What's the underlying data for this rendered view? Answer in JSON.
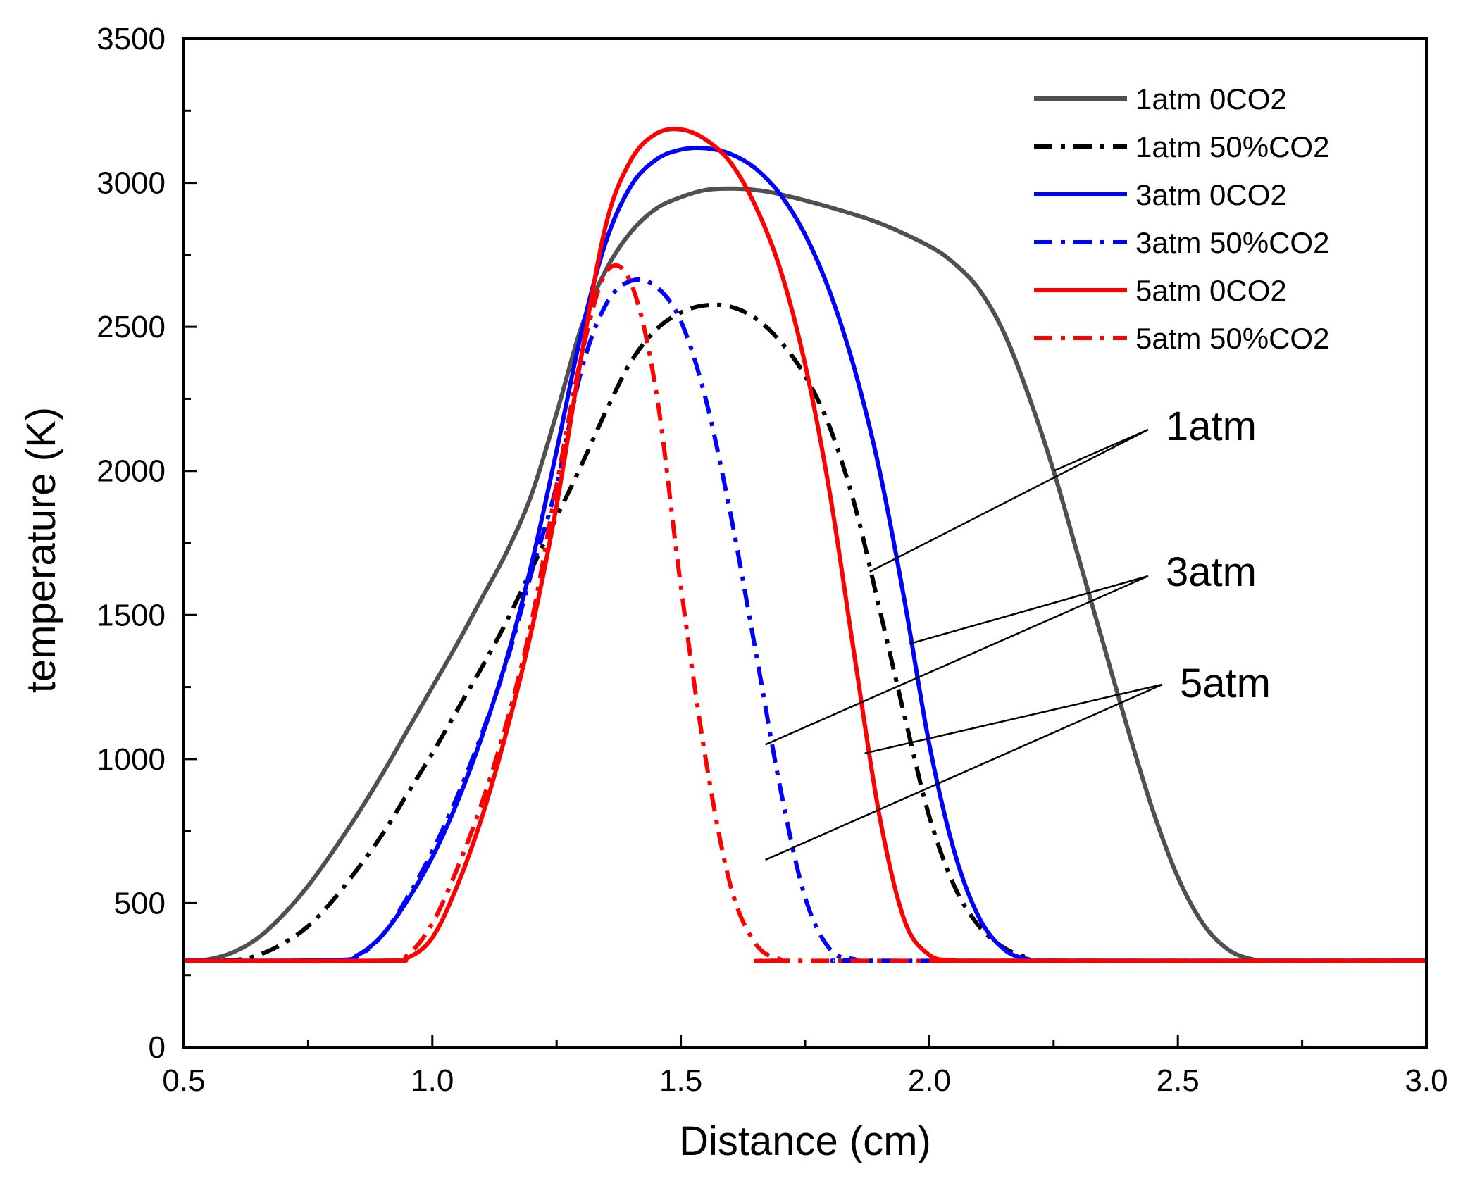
{
  "chart_data": {
    "type": "line",
    "title": "",
    "xlabel": "Distance (cm)",
    "ylabel": "temperature (K)",
    "xlim": [
      0.5,
      3.0
    ],
    "ylim": [
      0,
      3500
    ],
    "xticks": [
      0.5,
      1.0,
      1.5,
      2.0,
      2.5,
      3.0
    ],
    "xtick_labels": [
      "0.5",
      "1.0",
      "1.5",
      "2.0",
      "2.5",
      "3.0"
    ],
    "yticks": [
      0,
      500,
      1000,
      1500,
      2000,
      2500,
      3000,
      3500
    ],
    "ytick_labels": [
      "0",
      "500",
      "1000",
      "1500",
      "2000",
      "2500",
      "3000",
      "3500"
    ],
    "grid": false,
    "legend_position": "top-right",
    "series": [
      {
        "name": "1atm 0CO2",
        "color": "#505050",
        "dash": "solid",
        "points": [
          [
            0.5,
            300
          ],
          [
            0.55,
            305
          ],
          [
            0.6,
            330
          ],
          [
            0.65,
            380
          ],
          [
            0.7,
            460
          ],
          [
            0.75,
            560
          ],
          [
            0.8,
            680
          ],
          [
            0.85,
            810
          ],
          [
            0.9,
            950
          ],
          [
            0.95,
            1100
          ],
          [
            1.0,
            1250
          ],
          [
            1.05,
            1400
          ],
          [
            1.1,
            1560
          ],
          [
            1.15,
            1720
          ],
          [
            1.2,
            1920
          ],
          [
            1.25,
            2200
          ],
          [
            1.3,
            2500
          ],
          [
            1.35,
            2700
          ],
          [
            1.4,
            2830
          ],
          [
            1.45,
            2910
          ],
          [
            1.5,
            2950
          ],
          [
            1.55,
            2975
          ],
          [
            1.6,
            2980
          ],
          [
            1.65,
            2975
          ],
          [
            1.7,
            2960
          ],
          [
            1.8,
            2915
          ],
          [
            1.9,
            2860
          ],
          [
            2.0,
            2780
          ],
          [
            2.05,
            2720
          ],
          [
            2.1,
            2630
          ],
          [
            2.15,
            2480
          ],
          [
            2.2,
            2260
          ],
          [
            2.25,
            2000
          ],
          [
            2.3,
            1700
          ],
          [
            2.35,
            1400
          ],
          [
            2.4,
            1100
          ],
          [
            2.45,
            820
          ],
          [
            2.5,
            590
          ],
          [
            2.55,
            430
          ],
          [
            2.6,
            340
          ],
          [
            2.65,
            305
          ],
          [
            2.7,
            300
          ],
          [
            3.0,
            300
          ]
        ]
      },
      {
        "name": "1atm 50%CO2",
        "color": "#000000",
        "dash": "dashdot",
        "points": [
          [
            0.5,
            300
          ],
          [
            0.6,
            302
          ],
          [
            0.65,
            320
          ],
          [
            0.7,
            360
          ],
          [
            0.75,
            420
          ],
          [
            0.8,
            510
          ],
          [
            0.85,
            620
          ],
          [
            0.9,
            740
          ],
          [
            0.95,
            880
          ],
          [
            1.0,
            1020
          ],
          [
            1.05,
            1170
          ],
          [
            1.1,
            1320
          ],
          [
            1.15,
            1480
          ],
          [
            1.2,
            1660
          ],
          [
            1.25,
            1840
          ],
          [
            1.3,
            2020
          ],
          [
            1.35,
            2210
          ],
          [
            1.4,
            2380
          ],
          [
            1.45,
            2490
          ],
          [
            1.5,
            2550
          ],
          [
            1.55,
            2575
          ],
          [
            1.6,
            2570
          ],
          [
            1.65,
            2530
          ],
          [
            1.7,
            2450
          ],
          [
            1.75,
            2330
          ],
          [
            1.8,
            2150
          ],
          [
            1.85,
            1880
          ],
          [
            1.9,
            1520
          ],
          [
            1.95,
            1150
          ],
          [
            2.0,
            800
          ],
          [
            2.05,
            560
          ],
          [
            2.1,
            420
          ],
          [
            2.15,
            345
          ],
          [
            2.2,
            310
          ],
          [
            2.25,
            300
          ],
          [
            3.0,
            300
          ]
        ]
      },
      {
        "name": "3atm 0CO2",
        "color": "#0000ff",
        "dash": "solid",
        "points": [
          [
            0.5,
            300
          ],
          [
            0.8,
            302
          ],
          [
            0.85,
            320
          ],
          [
            0.9,
            390
          ],
          [
            0.95,
            510
          ],
          [
            1.0,
            660
          ],
          [
            1.05,
            850
          ],
          [
            1.1,
            1080
          ],
          [
            1.15,
            1350
          ],
          [
            1.2,
            1680
          ],
          [
            1.25,
            2070
          ],
          [
            1.3,
            2480
          ],
          [
            1.35,
            2800
          ],
          [
            1.4,
            2990
          ],
          [
            1.45,
            3080
          ],
          [
            1.5,
            3115
          ],
          [
            1.55,
            3120
          ],
          [
            1.6,
            3100
          ],
          [
            1.65,
            3050
          ],
          [
            1.7,
            2960
          ],
          [
            1.75,
            2820
          ],
          [
            1.8,
            2620
          ],
          [
            1.85,
            2350
          ],
          [
            1.9,
            2000
          ],
          [
            1.95,
            1550
          ],
          [
            2.0,
            1050
          ],
          [
            2.05,
            680
          ],
          [
            2.1,
            450
          ],
          [
            2.15,
            340
          ],
          [
            2.2,
            305
          ],
          [
            2.25,
            300
          ],
          [
            3.0,
            300
          ]
        ]
      },
      {
        "name": "3atm 50%CO2",
        "color": "#0000ff",
        "dash": "dashdot",
        "points": [
          [
            0.5,
            300
          ],
          [
            0.8,
            300
          ],
          [
            0.85,
            315
          ],
          [
            0.9,
            390
          ],
          [
            0.95,
            520
          ],
          [
            1.0,
            680
          ],
          [
            1.05,
            870
          ],
          [
            1.1,
            1090
          ],
          [
            1.15,
            1340
          ],
          [
            1.2,
            1650
          ],
          [
            1.25,
            1950
          ],
          [
            1.3,
            2350
          ],
          [
            1.35,
            2580
          ],
          [
            1.4,
            2660
          ],
          [
            1.45,
            2640
          ],
          [
            1.5,
            2520
          ],
          [
            1.55,
            2250
          ],
          [
            1.6,
            1850
          ],
          [
            1.65,
            1380
          ],
          [
            1.7,
            900
          ],
          [
            1.75,
            520
          ],
          [
            1.8,
            340
          ],
          [
            1.85,
            305
          ],
          [
            1.9,
            300
          ],
          [
            3.0,
            300
          ]
        ]
      },
      {
        "name": "5atm 0CO2",
        "color": "#ff0000",
        "dash": "solid",
        "points": [
          [
            0.5,
            300
          ],
          [
            0.9,
            300
          ],
          [
            0.95,
            310
          ],
          [
            1.0,
            380
          ],
          [
            1.05,
            560
          ],
          [
            1.1,
            800
          ],
          [
            1.15,
            1100
          ],
          [
            1.2,
            1450
          ],
          [
            1.25,
            1880
          ],
          [
            1.3,
            2400
          ],
          [
            1.35,
            2860
          ],
          [
            1.4,
            3080
          ],
          [
            1.45,
            3170
          ],
          [
            1.5,
            3185
          ],
          [
            1.55,
            3150
          ],
          [
            1.6,
            3070
          ],
          [
            1.65,
            2920
          ],
          [
            1.7,
            2700
          ],
          [
            1.75,
            2370
          ],
          [
            1.8,
            1920
          ],
          [
            1.85,
            1350
          ],
          [
            1.9,
            800
          ],
          [
            1.95,
            440
          ],
          [
            2.0,
            320
          ],
          [
            2.05,
            302
          ],
          [
            2.1,
            300
          ],
          [
            3.0,
            300
          ]
        ]
      },
      {
        "name": "5atm 50%CO2",
        "color": "#ff0000",
        "dash": "dashdot",
        "points": [
          [
            0.5,
            300
          ],
          [
            0.9,
            300
          ],
          [
            0.95,
            320
          ],
          [
            1.0,
            430
          ],
          [
            1.05,
            620
          ],
          [
            1.1,
            850
          ],
          [
            1.15,
            1130
          ],
          [
            1.2,
            1480
          ],
          [
            1.25,
            1950
          ],
          [
            1.3,
            2400
          ],
          [
            1.35,
            2690
          ],
          [
            1.4,
            2650
          ],
          [
            1.45,
            2280
          ],
          [
            1.5,
            1600
          ],
          [
            1.55,
            1000
          ],
          [
            1.6,
            560
          ],
          [
            1.65,
            360
          ],
          [
            1.7,
            305
          ],
          [
            1.75,
            300
          ],
          [
            3.0,
            300
          ]
        ]
      }
    ],
    "annotations": [
      {
        "label": "1atm",
        "targets": [
          [
            1.88,
            1650
          ],
          [
            2.25,
            2000
          ]
        ]
      },
      {
        "label": "3atm",
        "targets": [
          [
            1.67,
            1050
          ],
          [
            1.96,
            1400
          ]
        ]
      },
      {
        "label": "5atm",
        "targets": [
          [
            1.67,
            650
          ],
          [
            1.87,
            1020
          ]
        ]
      }
    ]
  }
}
